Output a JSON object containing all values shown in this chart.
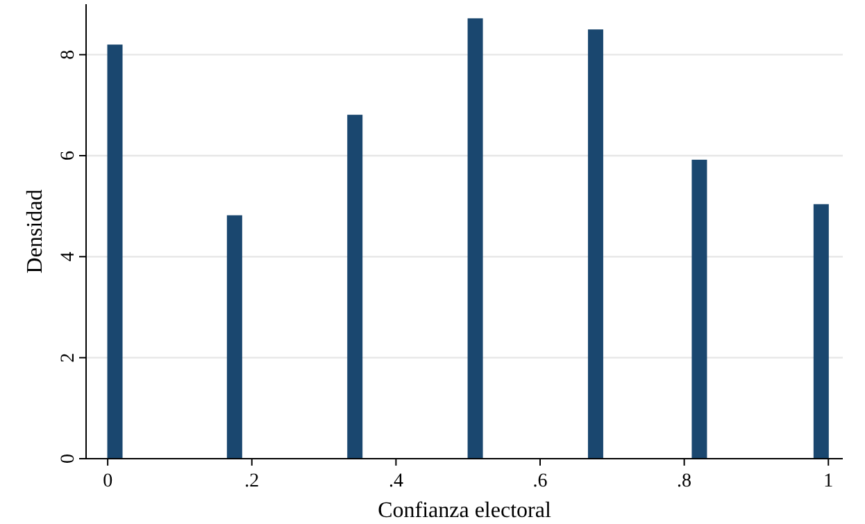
{
  "chart_data": {
    "type": "bar",
    "xlabel": "Confianza electoral",
    "ylabel": "Densidad",
    "x": [
      0.01,
      0.176,
      0.343,
      0.51,
      0.677,
      0.821,
      0.99
    ],
    "values": [
      8.2,
      4.82,
      6.81,
      8.72,
      8.5,
      5.92,
      5.04
    ],
    "color": "#1a476f",
    "xlim": [
      -0.03,
      1.02
    ],
    "xticks": [
      {
        "value": 0,
        "label": "0"
      },
      {
        "value": 0.2,
        "label": ".2"
      },
      {
        "value": 0.4,
        "label": ".4"
      },
      {
        "value": 0.6,
        "label": ".6"
      },
      {
        "value": 0.8,
        "label": ".8"
      },
      {
        "value": 1,
        "label": "1"
      }
    ],
    "ylim": [
      0,
      9
    ],
    "yticks": [
      0,
      2,
      4,
      6,
      8
    ],
    "grid": "y"
  }
}
